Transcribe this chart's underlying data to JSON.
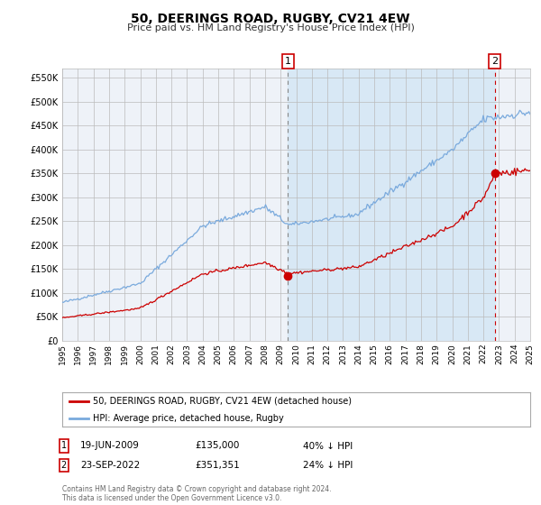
{
  "title": "50, DEERINGS ROAD, RUGBY, CV21 4EW",
  "subtitle": "Price paid vs. HM Land Registry's House Price Index (HPI)",
  "legend_label_red": "50, DEERINGS ROAD, RUGBY, CV21 4EW (detached house)",
  "legend_label_blue": "HPI: Average price, detached house, Rugby",
  "annotation1_date": "19-JUN-2009",
  "annotation1_price": "£135,000",
  "annotation1_hpi": "40% ↓ HPI",
  "annotation1_label": "1",
  "annotation2_date": "23-SEP-2022",
  "annotation2_price": "£351,351",
  "annotation2_hpi": "24% ↓ HPI",
  "annotation2_label": "2",
  "footnote": "Contains HM Land Registry data © Crown copyright and database right 2024.\nThis data is licensed under the Open Government Licence v3.0.",
  "background_color": "#ffffff",
  "plot_bg_color": "#eef2f8",
  "shaded_region_color": "#d8e8f5",
  "grid_color": "#bbbbbb",
  "red_line_color": "#cc0000",
  "blue_line_color": "#7aaadd",
  "ylim": [
    0,
    570000
  ],
  "yticks": [
    0,
    50000,
    100000,
    150000,
    200000,
    250000,
    300000,
    350000,
    400000,
    450000,
    500000,
    550000
  ],
  "year_start": 1995,
  "year_end": 2025,
  "sale1_year": 2009.47,
  "sale1_value": 135000,
  "sale2_year": 2022.73,
  "sale2_value": 351351
}
